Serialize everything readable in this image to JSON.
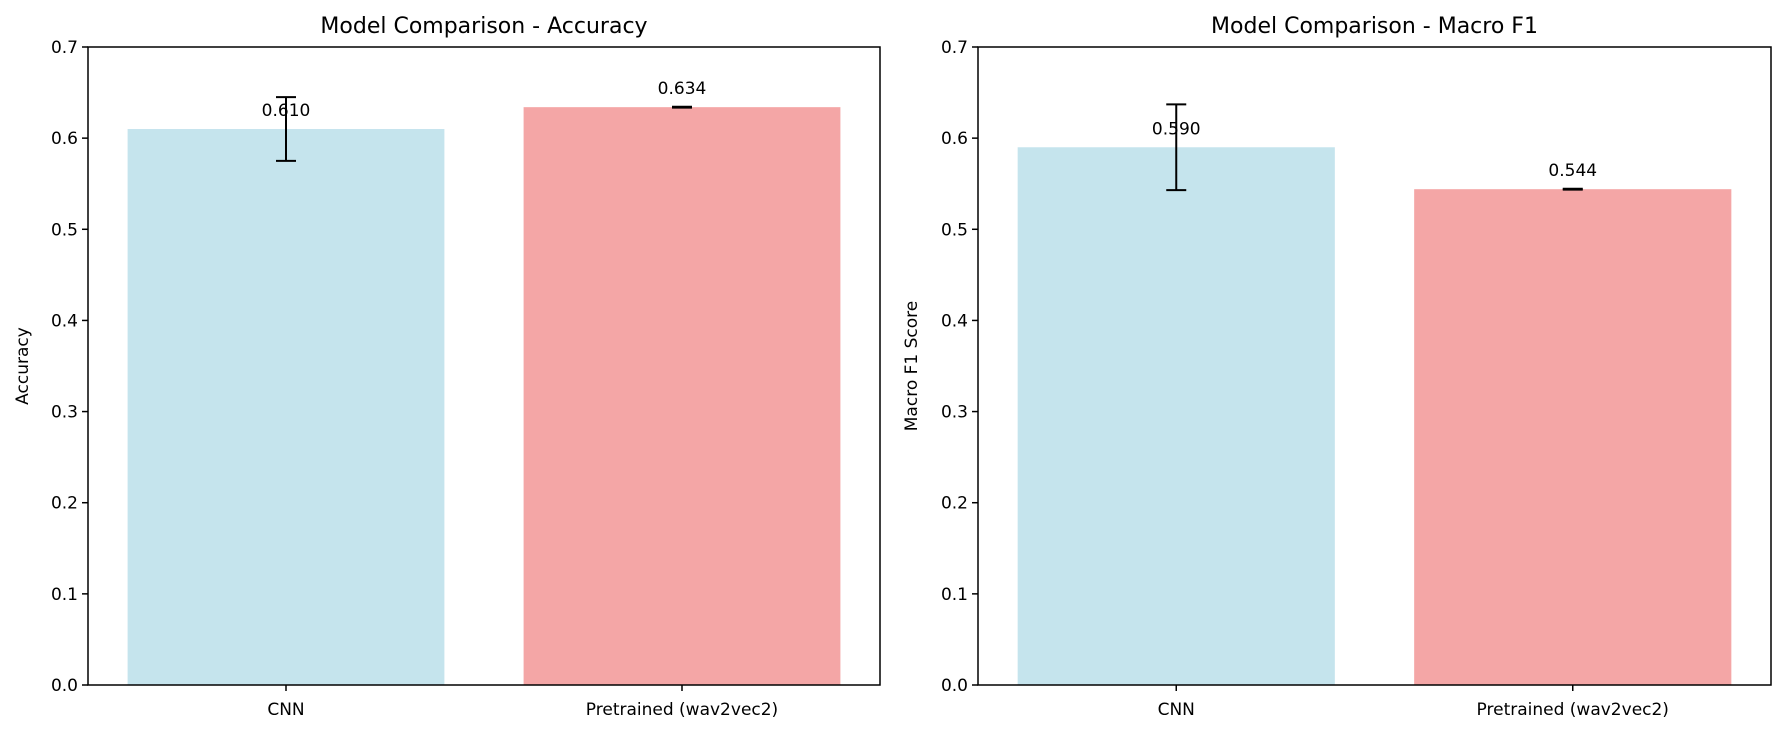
{
  "colors": {
    "cnn": "#add8e6",
    "pretrained": "#f08080"
  },
  "chart_data": [
    {
      "type": "bar",
      "title": "Model Comparison - Accuracy",
      "xlabel": "",
      "ylabel": "Accuracy",
      "categories": [
        "CNN",
        "Pretrained (wav2vec2)"
      ],
      "values": [
        0.61,
        0.634
      ],
      "errors": [
        0.035,
        0.0005
      ],
      "value_labels": [
        "0.610",
        "0.634"
      ],
      "ylim": [
        0,
        0.7
      ],
      "yticks": [
        0.0,
        0.1,
        0.2,
        0.3,
        0.4,
        0.5,
        0.6,
        0.7
      ],
      "ytick_labels": [
        "0.0",
        "0.1",
        "0.2",
        "0.3",
        "0.4",
        "0.5",
        "0.6",
        "0.7"
      ],
      "bar_colors": [
        "#add8e6",
        "#f08080"
      ],
      "bar_alpha": 0.7,
      "grid": false,
      "legend": false
    },
    {
      "type": "bar",
      "title": "Model Comparison - Macro F1",
      "xlabel": "",
      "ylabel": "Macro F1 Score",
      "categories": [
        "CNN",
        "Pretrained (wav2vec2)"
      ],
      "values": [
        0.59,
        0.544
      ],
      "errors": [
        0.047,
        0.0005
      ],
      "value_labels": [
        "0.590",
        "0.544"
      ],
      "ylim": [
        0,
        0.7
      ],
      "yticks": [
        0.0,
        0.1,
        0.2,
        0.3,
        0.4,
        0.5,
        0.6,
        0.7
      ],
      "ytick_labels": [
        "0.0",
        "0.1",
        "0.2",
        "0.3",
        "0.4",
        "0.5",
        "0.6",
        "0.7"
      ],
      "bar_colors": [
        "#add8e6",
        "#f08080"
      ],
      "bar_alpha": 0.7,
      "grid": false,
      "legend": false
    }
  ]
}
